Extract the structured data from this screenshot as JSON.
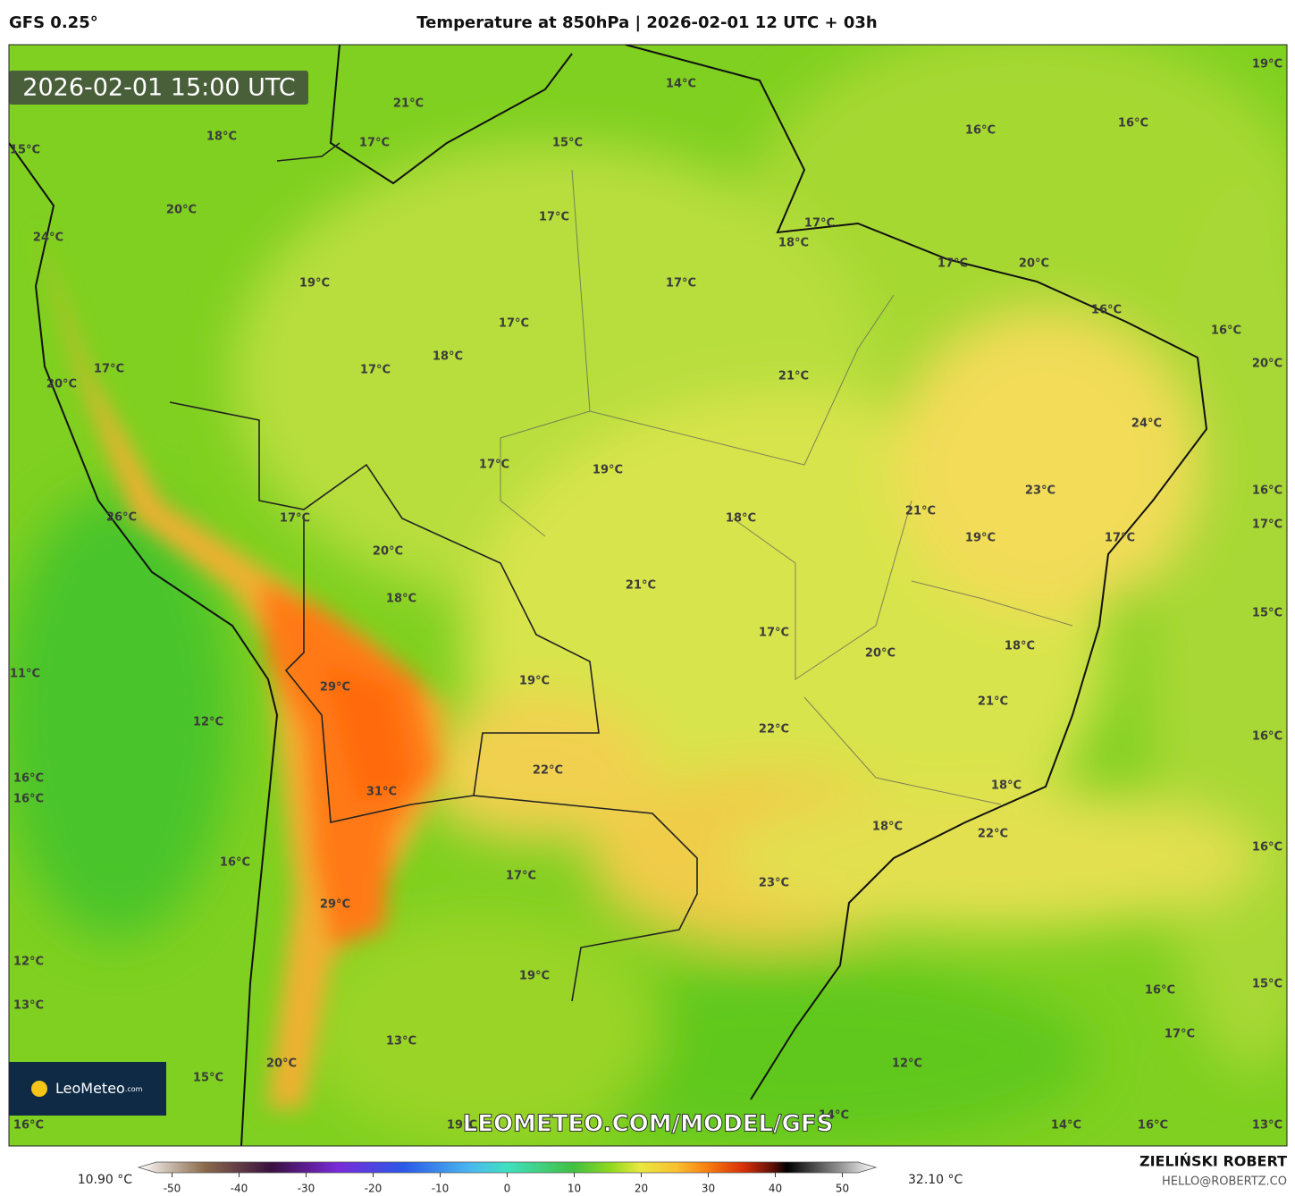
{
  "header": {
    "model": "GFS 0.25°",
    "title": "Temperature at 850hPa | 2026-02-01 12 UTC + 03h"
  },
  "timestamp": "2026-02-01 15:00 UTC",
  "map_labels": [
    "21°C",
    "14°C",
    "19°C",
    "15°C",
    "18°C",
    "17°C",
    "15°C",
    "16°C",
    "16°C",
    "20°C",
    "17°C",
    "17°C",
    "24°C",
    "18°C",
    "17°C",
    "20°C",
    "19°C",
    "17°C",
    "16°C",
    "16°C",
    "17°C",
    "18°C",
    "20°C",
    "17°C",
    "17°C",
    "21°C",
    "20°C",
    "24°C",
    "17°C",
    "19°C",
    "23°C",
    "16°C",
    "21°C",
    "26°C",
    "17°C",
    "18°C",
    "17°C",
    "19°C",
    "17°C",
    "20°C",
    "21°C",
    "18°C",
    "15°C",
    "17°C",
    "18°C",
    "20°C",
    "11°C",
    "19°C",
    "29°C",
    "21°C",
    "12°C",
    "22°C",
    "16°C",
    "22°C",
    "16°C",
    "18°C",
    "31°C",
    "16°C",
    "18°C",
    "22°C",
    "16°C",
    "16°C",
    "17°C",
    "23°C",
    "29°C",
    "12°C",
    "19°C",
    "16°C",
    "15°C",
    "13°C",
    "13°C",
    "17°C",
    "20°C",
    "12°C",
    "15°C",
    "14°C",
    "19°C",
    "16°C",
    "14°C",
    "16°C",
    "13°C"
  ],
  "logo": {
    "name": "LeoMeteo",
    "suffix": ".com"
  },
  "watermark": "LEOMETEO.COM/MODEL/GFS",
  "colorbar": {
    "min_label": "10.90 °C",
    "max_label": "32.10 °C",
    "range": [
      -55,
      55
    ],
    "ticks": [
      -50,
      -40,
      -30,
      -20,
      -10,
      0,
      10,
      20,
      30,
      40,
      50
    ]
  },
  "author": {
    "name": "ZIELIŃSKI ROBERT",
    "email": "HELLO@ROBERTZ.CO"
  }
}
